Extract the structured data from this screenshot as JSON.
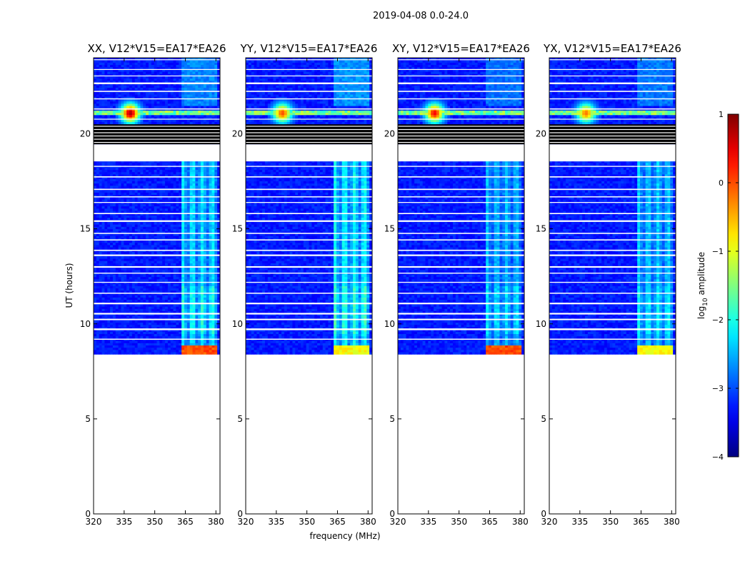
{
  "figure": {
    "suptitle": "2019-04-08 0.0-24.0",
    "xlabel": "frequency (MHz)",
    "ylabel": "UT (hours)"
  },
  "chart_data": {
    "type": "heatmap",
    "title": "2019-04-08 0.0-24.0",
    "xlabel": "frequency (MHz)",
    "ylabel": "UT (hours)",
    "xlim": [
      320,
      382
    ],
    "ylim": [
      0,
      24
    ],
    "xticks": [
      320,
      335,
      350,
      365,
      380
    ],
    "yticks": [
      0,
      5,
      10,
      15,
      20
    ],
    "colormap": "jet",
    "colorbar": {
      "label_prefix": "log",
      "label_sub": "10",
      "label_suffix": " amplitude",
      "range": [
        -4,
        1
      ],
      "ticks": [
        "1",
        "0",
        "−1",
        "−2",
        "−3",
        "−4"
      ],
      "tick_values": [
        1,
        0,
        -1,
        -2,
        -3,
        -4
      ]
    },
    "data_time_range_hours": [
      8.4,
      24.0
    ],
    "flagged_blocks_hours": [
      [
        19.45,
        20.5
      ]
    ],
    "gap_hours": [
      [
        18.55,
        19.45
      ]
    ],
    "rfi_bursts": [
      {
        "freq_mhz": 338,
        "time_hours": 21.1
      }
    ],
    "band_enhancement_mhz": [
      363,
      380
    ],
    "panels": [
      {
        "title": "XX, V12*V15=EA17*EA26",
        "burst_strength": 1.0,
        "band_strength": 0.75,
        "red_strip": true
      },
      {
        "title": "YY, V12*V15=EA17*EA26",
        "burst_strength": 0.8,
        "band_strength": 0.85,
        "red_strip": false
      },
      {
        "title": "XY, V12*V15=EA17*EA26",
        "burst_strength": 0.9,
        "band_strength": 0.6,
        "red_strip": true
      },
      {
        "title": "YX, V12*V15=EA17*EA26",
        "burst_strength": 0.75,
        "band_strength": 0.65,
        "red_strip": false
      }
    ]
  }
}
